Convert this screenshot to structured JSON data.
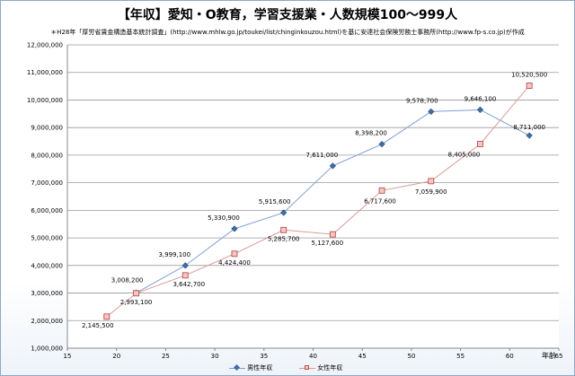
{
  "title": "【年収】愛知・O教育，学習支援業・人数規模100〜999人",
  "subtitle": "＊H28年「厚労省賃金構造基本統計調査」(http://www.mhlw.go.jp/toukei/list/chinginkouzou.html)を基に安達社会保険労務士事務所(http://www.fp-s.co.jp)が作成",
  "x_unit": "年齢",
  "chart_data": {
    "type": "line",
    "title": "【年収】愛知・O教育，学習支援業・人数規模100〜999人",
    "xlabel": "年齢",
    "ylabel": "",
    "xlim": [
      15,
      65
    ],
    "ylim": [
      1000000,
      12000000
    ],
    "xticks": [
      15,
      20,
      25,
      30,
      35,
      40,
      45,
      50,
      55,
      60,
      65
    ],
    "yticks": [
      1000000,
      2000000,
      3000000,
      4000000,
      5000000,
      6000000,
      7000000,
      8000000,
      9000000,
      10000000,
      11000000,
      12000000
    ],
    "ytick_labels": [
      "1,000,000",
      "2,000,000",
      "3,000,000",
      "4,000,000",
      "5,000,000",
      "6,000,000",
      "7,000,000",
      "8,000,000",
      "9,000,000",
      "10,000,000",
      "11,000,000",
      "12,000,000"
    ],
    "grid": true,
    "legend_position": "bottom",
    "series": [
      {
        "name": "男性年収",
        "color": "#3f6ea8",
        "marker": "diamond",
        "x": [
          22,
          27,
          32,
          37,
          42,
          47,
          52,
          57,
          62
        ],
        "y": [
          3008200,
          3999100,
          5330900,
          5915600,
          7611000,
          8398200,
          9578700,
          9646100,
          8711000
        ],
        "labels": [
          "3,008,200",
          "3,999,100",
          "5,330,900",
          "5,915,600",
          "7,611,000",
          "8,398,200",
          "9,578,700",
          "9,646,100",
          "8,711,000"
        ]
      },
      {
        "name": "女性年収",
        "color": "#c0504d",
        "marker": "square",
        "x": [
          19,
          22,
          27,
          32,
          37,
          42,
          47,
          52,
          57,
          62
        ],
        "y": [
          2145500,
          2993100,
          3642700,
          4424400,
          5285700,
          5127600,
          6717600,
          7059900,
          8405000,
          10520500
        ],
        "labels": [
          "2,145,500",
          "2,993,100",
          "3,642,700",
          "4,424,400",
          "5,285,700",
          "5,127,600",
          "6,717,600",
          "7,059,900",
          "8,405,000",
          "10,520,500"
        ]
      }
    ]
  }
}
